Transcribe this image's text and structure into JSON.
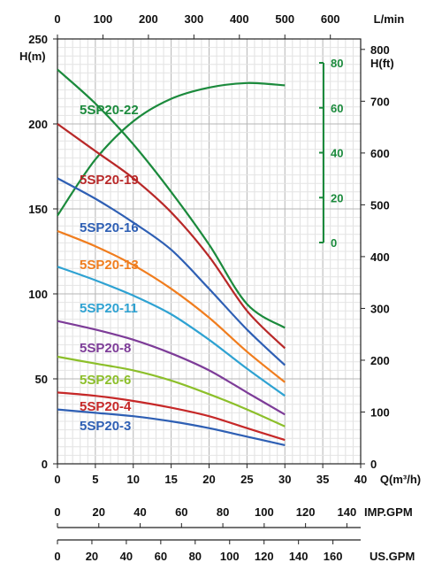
{
  "chart_data": {
    "type": "line",
    "title": "",
    "grid": true,
    "x_axis": {
      "label": "Q(m³/h)",
      "range": [
        0,
        40
      ],
      "ticks": [
        "0",
        "5",
        "10",
        "15",
        "20",
        "25",
        "30",
        "35",
        "40"
      ]
    },
    "top_axis": {
      "label": "L/min",
      "range": [
        0,
        666.67
      ],
      "ticks": [
        "0",
        "100",
        "200",
        "300",
        "400",
        "500",
        "600"
      ]
    },
    "y_left_axis": {
      "label": "H(m)",
      "range": [
        0,
        250
      ],
      "ticks": [
        "0",
        "50",
        "100",
        "150",
        "200",
        "250"
      ]
    },
    "y_right_axis": {
      "label": "H(ft)",
      "range": [
        0,
        820.2
      ],
      "ticks": [
        "0",
        "100",
        "200",
        "300",
        "400",
        "500",
        "600",
        "700",
        "800"
      ]
    },
    "efficiency_axis": {
      "range": [
        0,
        80
      ],
      "ticks": [
        "0",
        "20",
        "40",
        "60",
        "80"
      ],
      "color": "#1b8a3c"
    },
    "imp_gpm_axis": {
      "label": "IMP.GPM",
      "range": [
        0,
        146.67
      ],
      "ticks": [
        "0",
        "20",
        "40",
        "60",
        "80",
        "100",
        "120",
        "140"
      ]
    },
    "us_gpm_axis": {
      "label": "US.GPM",
      "range": [
        0,
        176.11
      ],
      "ticks": [
        "0",
        "20",
        "40",
        "60",
        "80",
        "100",
        "120",
        "140",
        "160"
      ]
    },
    "series": [
      {
        "name": "5SP20-22",
        "color": "#1b8a3c",
        "x": [
          0,
          5,
          10,
          15,
          20,
          25,
          30
        ],
        "values": [
          232,
          212,
          188,
          160,
          129,
          94,
          80
        ]
      },
      {
        "name": "5SP20-19",
        "color": "#b82828",
        "x": [
          0,
          5,
          10,
          15,
          20,
          25,
          30
        ],
        "values": [
          200,
          184,
          168,
          148,
          122,
          90,
          68
        ]
      },
      {
        "name": "5SP20-16",
        "color": "#2e5fb4",
        "x": [
          0,
          5,
          10,
          15,
          20,
          25,
          30
        ],
        "values": [
          168,
          156,
          142,
          126,
          103,
          79,
          58
        ]
      },
      {
        "name": "5SP20-13",
        "color": "#f07d1e",
        "x": [
          0,
          5,
          10,
          15,
          20,
          25,
          30
        ],
        "values": [
          137,
          128,
          117,
          103,
          86,
          66,
          48
        ]
      },
      {
        "name": "5SP20-11",
        "color": "#2ea2d2",
        "x": [
          0,
          5,
          10,
          15,
          20,
          25,
          30
        ],
        "values": [
          116,
          108,
          99,
          88,
          73,
          56,
          40
        ]
      },
      {
        "name": "5SP20-8",
        "color": "#7d3c98",
        "x": [
          0,
          5,
          10,
          15,
          20,
          25,
          30
        ],
        "values": [
          84,
          79,
          73,
          65,
          55,
          42,
          29
        ]
      },
      {
        "name": "5SP20-6",
        "color": "#8cbf2a",
        "x": [
          0,
          5,
          10,
          15,
          20,
          25,
          30
        ],
        "values": [
          63,
          59,
          55,
          49,
          41,
          32,
          22
        ]
      },
      {
        "name": "5SP20-4",
        "color": "#c62828",
        "x": [
          0,
          5,
          10,
          15,
          20,
          25,
          30
        ],
        "values": [
          42,
          40,
          37,
          33,
          28,
          21,
          14
        ]
      },
      {
        "name": "5SP20-3",
        "color": "#2e5fb4",
        "x": [
          0,
          5,
          10,
          15,
          20,
          25,
          30
        ],
        "values": [
          32,
          30,
          28,
          25,
          21,
          16,
          11
        ]
      }
    ],
    "efficiency_curve": {
      "color": "#1b8a3c",
      "x": [
        0,
        5,
        10,
        15,
        20,
        25,
        30
      ],
      "values": [
        12,
        37,
        54,
        64,
        69,
        71,
        70
      ]
    }
  }
}
